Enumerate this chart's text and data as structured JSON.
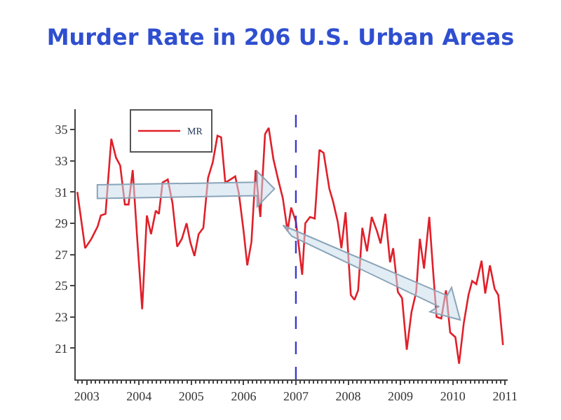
{
  "chart_data": {
    "type": "line",
    "title": "Murder Rate in 206 U.S. Urban Areas",
    "x": [
      2002.82,
      2002.97,
      2003.09,
      2003.21,
      2003.27,
      2003.36,
      2003.47,
      2003.56,
      2003.64,
      2003.73,
      2003.8,
      2003.88,
      2003.97,
      2004.06,
      2004.15,
      2004.23,
      2004.32,
      2004.38,
      2004.45,
      2004.55,
      2004.64,
      2004.73,
      2004.82,
      2004.91,
      2004.98,
      2005.06,
      2005.14,
      2005.23,
      2005.32,
      2005.41,
      2005.5,
      2005.57,
      2005.65,
      2005.75,
      2005.84,
      2005.91,
      2006.0,
      2006.07,
      2006.15,
      2006.23,
      2006.32,
      2006.41,
      2006.48,
      2006.57,
      2006.66,
      2006.75,
      2006.84,
      2006.91,
      2007.0,
      2007.12,
      2007.18,
      2007.27,
      2007.36,
      2007.45,
      2007.53,
      2007.64,
      2007.71,
      2007.8,
      2007.87,
      2007.95,
      2008.05,
      2008.12,
      2008.19,
      2008.27,
      2008.36,
      2008.45,
      2008.55,
      2008.62,
      2008.71,
      2008.8,
      2008.86,
      2008.95,
      2009.03,
      2009.12,
      2009.21,
      2009.3,
      2009.37,
      2009.45,
      2009.55,
      2009.62,
      2009.69,
      2009.78,
      2009.87,
      2009.95,
      2010.05,
      2010.12,
      2010.21,
      2010.3,
      2010.37,
      2010.45,
      2010.55,
      2010.62,
      2010.71,
      2010.8,
      2010.87,
      2010.96
    ],
    "series": [
      {
        "name": "MR",
        "color": "#e0202a",
        "values": [
          31.0,
          27.4,
          28.0,
          28.8,
          29.5,
          29.6,
          34.4,
          33.2,
          32.7,
          30.2,
          30.2,
          32.4,
          27.8,
          23.5,
          29.5,
          28.3,
          29.8,
          29.6,
          31.6,
          31.8,
          30.3,
          27.5,
          28.0,
          29.0,
          27.8,
          26.9,
          28.3,
          28.7,
          31.9,
          32.9,
          34.6,
          34.5,
          31.6,
          31.8,
          32.0,
          30.9,
          28.5,
          26.3,
          27.8,
          32.4,
          29.4,
          34.7,
          35.1,
          33.1,
          31.8,
          30.6,
          28.5,
          30.0,
          29.1,
          25.7,
          29.0,
          29.4,
          29.3,
          33.7,
          33.5,
          31.2,
          30.4,
          29.1,
          27.4,
          29.7,
          24.4,
          24.1,
          24.7,
          28.7,
          27.2,
          29.4,
          28.5,
          27.7,
          29.6,
          26.5,
          27.4,
          24.6,
          24.2,
          20.9,
          23.3,
          24.6,
          28.0,
          26.1,
          29.4,
          26.1,
          23.0,
          22.9,
          24.7,
          22.0,
          21.7,
          20.0,
          22.6,
          24.4,
          25.3,
          25.1,
          26.6,
          24.5,
          26.3,
          24.8,
          24.4,
          21.2
        ]
      }
    ],
    "xlim": [
      2002.79,
      2011.05
    ],
    "xticks": [
      2003,
      2004,
      2005,
      2006,
      2007,
      2008,
      2009,
      2010,
      2011
    ],
    "ylim": [
      19.0,
      36.3
    ],
    "yticks": [
      21,
      23,
      25,
      27,
      29,
      31,
      33,
      35
    ],
    "ref_lines": [
      {
        "axis": "x",
        "value": 2007,
        "color": "#3a3ad0",
        "line_style": "dashed"
      }
    ],
    "legend": "top left",
    "line_style": "solid",
    "marker": "none"
  }
}
